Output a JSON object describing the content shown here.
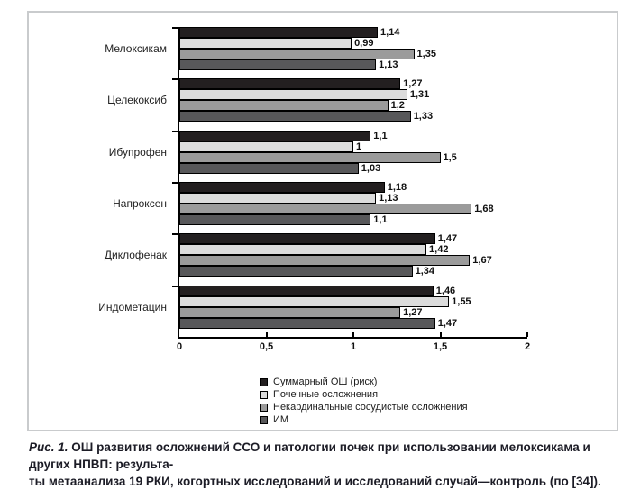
{
  "figure": {
    "caption": {
      "label": "Рис. 1.",
      "line1": " ОШ развития осложнений ССО и патологии почек при использовании мелоксикама и других НПВП: результа-",
      "line2": "ты метаанализа 19 РКИ, когортных исследований и исследований случай—контроль (по [34])."
    }
  },
  "chart_data": {
    "type": "bar",
    "orientation": "horizontal",
    "title": "",
    "xlabel": "",
    "ylabel": "",
    "xlim": [
      0,
      2
    ],
    "x_ticks": [
      "0",
      "0,5",
      "1",
      "1,5",
      "2"
    ],
    "x_tick_values": [
      0,
      0.5,
      1,
      1.5,
      2
    ],
    "grid": false,
    "legend_position": "bottom",
    "categories": [
      "Мелоксикам",
      "Целекоксиб",
      "Ибупрофен",
      "Напроксен",
      "Диклофенак",
      "Индометацин"
    ],
    "series": [
      {
        "name": "Суммарный ОШ (риск)",
        "color": "#231f20",
        "values": [
          1.14,
          1.27,
          1.1,
          1.18,
          1.47,
          1.46
        ],
        "labels": [
          "1,14",
          "1,27",
          "1,1",
          "1,18",
          "1,47",
          "1,46"
        ]
      },
      {
        "name": "Почечные осложнения",
        "color": "#dcdcdc",
        "values": [
          0.99,
          1.31,
          1.0,
          1.13,
          1.42,
          1.55
        ],
        "labels": [
          "0,99",
          "1,31",
          "1",
          "1,13",
          "1,42",
          "1,55"
        ]
      },
      {
        "name": "Некардинальные сосудистые осложнения",
        "color": "#9b9b9b",
        "values": [
          1.35,
          1.2,
          1.5,
          1.68,
          1.67,
          1.27
        ],
        "labels": [
          "1,35",
          "1,2",
          "1,5",
          "1,68",
          "1,67",
          "1,27"
        ]
      },
      {
        "name": "ИМ",
        "color": "#58585a",
        "values": [
          1.13,
          1.33,
          1.03,
          1.1,
          1.34,
          1.47
        ],
        "labels": [
          "1,13",
          "1,33",
          "1,03",
          "1,1",
          "1,34",
          "1,47"
        ]
      }
    ]
  },
  "colors": {
    "frame_border": "#c9cbcd",
    "axis": "#000000",
    "value_text": "#111111",
    "caption_text": "#1c1c26"
  }
}
